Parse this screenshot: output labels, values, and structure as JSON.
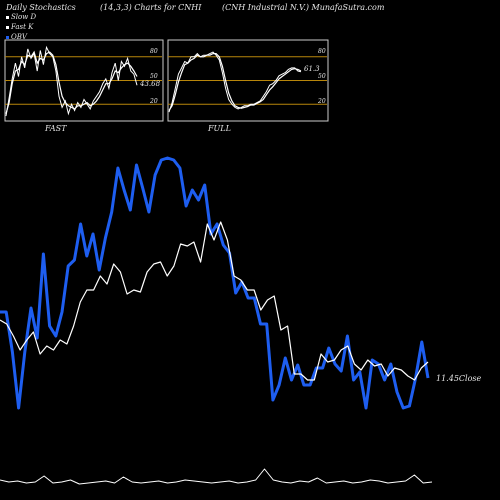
{
  "header": {
    "title_left": "Daily Stochastics",
    "title_center": "(14,3,3) Charts for CNHI",
    "title_right": "(CNH Industrial N.V.) MunafaSutra.com"
  },
  "legend": [
    {
      "label": "Slow D",
      "color": "#ffffff"
    },
    {
      "label": "Fast K",
      "color": "#ffffff"
    },
    {
      "label": "OBV",
      "color": "#1e5ef0"
    }
  ],
  "colors": {
    "obv": "#1e5ef0",
    "price": "#ffffff",
    "level_line": "#b8860b",
    "panel_border": "#cccccc"
  },
  "chart_data": [
    {
      "type": "line",
      "title": "FAST",
      "ylim": [
        0,
        100
      ],
      "levels": [
        20,
        50,
        80
      ],
      "level_labels": [
        "80",
        "50",
        "20"
      ],
      "last_value_label": "43.68",
      "series": [
        {
          "name": "Fast K",
          "values": [
            5,
            28,
            52,
            72,
            55,
            80,
            66,
            90,
            78,
            84,
            62,
            88,
            70,
            92,
            84,
            80,
            62,
            30,
            16,
            24,
            8,
            20,
            12,
            22,
            16,
            26,
            20,
            14,
            24,
            30,
            36,
            46,
            52,
            40,
            60,
            72,
            50,
            74,
            68,
            78,
            62,
            58,
            44
          ]
        },
        {
          "name": "Slow D",
          "values": [
            8,
            22,
            46,
            62,
            64,
            74,
            70,
            82,
            80,
            86,
            72,
            78,
            76,
            84,
            86,
            82,
            70,
            48,
            30,
            22,
            18,
            16,
            14,
            18,
            18,
            20,
            22,
            18,
            20,
            24,
            30,
            38,
            46,
            46,
            52,
            62,
            60,
            66,
            70,
            72,
            68,
            62,
            55
          ]
        }
      ]
    },
    {
      "type": "line",
      "title": "FULL",
      "ylim": [
        0,
        100
      ],
      "levels": [
        20,
        50,
        80
      ],
      "level_labels": [
        "80",
        "50",
        "20"
      ],
      "last_value_label": "61.3",
      "series": [
        {
          "name": "Full K",
          "values": [
            10,
            22,
            40,
            58,
            66,
            74,
            72,
            80,
            80,
            84,
            80,
            82,
            82,
            84,
            86,
            82,
            76,
            60,
            40,
            26,
            20,
            16,
            14,
            16,
            18,
            18,
            20,
            20,
            22,
            24,
            30,
            36,
            44,
            46,
            50,
            56,
            58,
            60,
            64,
            66,
            66,
            62,
            61
          ]
        },
        {
          "name": "Full D",
          "values": [
            12,
            18,
            32,
            48,
            60,
            70,
            72,
            76,
            78,
            82,
            80,
            80,
            82,
            82,
            84,
            84,
            80,
            68,
            50,
            34,
            24,
            18,
            16,
            15,
            16,
            17,
            19,
            19,
            21,
            23,
            26,
            32,
            38,
            42,
            47,
            52,
            55,
            58,
            61,
            64,
            65,
            64,
            62
          ]
        }
      ]
    },
    {
      "type": "line",
      "title": "",
      "last_value_label": "11.45",
      "last_value_unit": "Close",
      "series": [
        {
          "name": "OBV",
          "values": [
            312,
            312,
            352,
            408,
            352,
            308,
            338,
            254,
            326,
            336,
            312,
            266,
            260,
            224,
            256,
            234,
            270,
            238,
            212,
            168,
            190,
            210,
            165,
            188,
            212,
            175,
            160,
            158,
            160,
            168,
            206,
            190,
            200,
            185,
            234,
            224,
            245,
            253,
            293,
            282,
            298,
            298,
            324,
            324,
            400,
            385,
            358,
            380,
            365,
            385,
            385,
            368,
            368,
            348,
            364,
            371,
            336,
            380,
            372,
            408,
            360,
            364,
            380,
            364,
            392,
            408,
            406,
            378,
            342,
            378
          ]
        },
        {
          "name": "Price",
          "values": [
            320,
            324,
            336,
            350,
            340,
            332,
            354,
            346,
            350,
            340,
            344,
            326,
            302,
            290,
            290,
            276,
            284,
            264,
            272,
            294,
            290,
            292,
            272,
            264,
            262,
            276,
            266,
            244,
            246,
            242,
            262,
            224,
            240,
            222,
            240,
            276,
            280,
            290,
            290,
            310,
            300,
            296,
            330,
            326,
            374,
            374,
            380,
            380,
            354,
            362,
            360,
            350,
            346,
            364,
            370,
            360,
            366,
            364,
            376,
            368,
            370,
            376,
            380,
            368,
            362
          ]
        },
        {
          "name": "Volume",
          "values": [
            480,
            482,
            481,
            483,
            482,
            476,
            483,
            482,
            480,
            484,
            483,
            482,
            481,
            483,
            477,
            482,
            483,
            482,
            481,
            483,
            482,
            480,
            481,
            482,
            483,
            482,
            481,
            483,
            482,
            480,
            469,
            480,
            482,
            483,
            481,
            482,
            478,
            483,
            482,
            481,
            483,
            482,
            480,
            481,
            483,
            482,
            481,
            475,
            483,
            482
          ]
        }
      ]
    }
  ]
}
